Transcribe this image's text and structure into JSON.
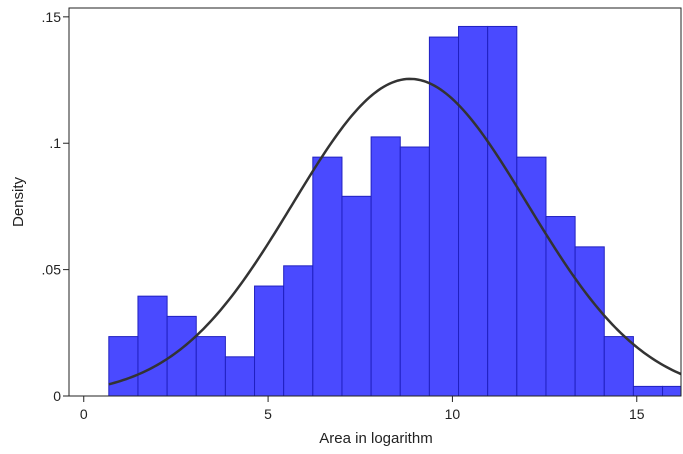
{
  "chart_data": {
    "type": "bar",
    "subtype": "histogram-with-normal-density",
    "title": "",
    "xlabel": "Area in logarithm",
    "ylabel": "Density",
    "xlim": [
      -0.4,
      16.2
    ],
    "ylim": [
      0,
      0.1535
    ],
    "x_ticks": [
      0,
      5,
      10,
      15
    ],
    "x_tick_labels": [
      "0",
      "5",
      "10",
      "15"
    ],
    "y_ticks": [
      0,
      0.05,
      0.1,
      0.15
    ],
    "y_tick_labels": [
      "0",
      ".05",
      ".1",
      ".15"
    ],
    "grid": false,
    "legend": "none",
    "bin_edges": [
      0.68,
      1.4705,
      2.261,
      3.0515,
      3.842,
      4.6325,
      5.423,
      6.2135,
      7.004,
      7.7945,
      8.585,
      9.3755,
      10.166,
      10.9565,
      11.747,
      12.5375,
      13.328,
      14.1185,
      14.909,
      15.6995,
      16.49
    ],
    "values": [
      0.0235,
      0.0395,
      0.0315,
      0.0235,
      0.0155,
      0.0435,
      0.0515,
      0.0945,
      0.079,
      0.1025,
      0.0985,
      0.142,
      0.1462,
      0.1462,
      0.0945,
      0.071,
      0.059,
      0.0235,
      0.0038,
      0.0038
    ],
    "normal_curve": {
      "mean": 8.85,
      "sd": 3.18,
      "x_range": [
        0.68,
        16.2
      ]
    },
    "colors": {
      "bar_fill": "#4a4aff",
      "bar_stroke": "#2020c0",
      "curve": "#333333",
      "axis": "#222222"
    }
  }
}
